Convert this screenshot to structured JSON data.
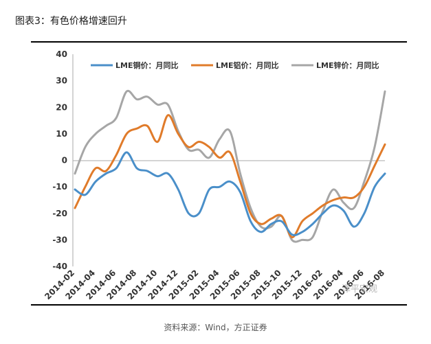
{
  "figure": {
    "title": "图表3：有色价格增速回升",
    "source": "资料来源：Wind，方正证券",
    "watermark": "泽平宏观"
  },
  "chart_data": {
    "type": "line",
    "title": "",
    "xlabel": "",
    "ylabel": "",
    "ylim": [
      -40,
      40
    ],
    "y_ticks": [
      40,
      30,
      20,
      10,
      0,
      -10,
      -20,
      -30,
      -40
    ],
    "x_ticks": [
      "2014-02",
      "2014-04",
      "2014-06",
      "2014-08",
      "2014-10",
      "2014-12",
      "2015-02",
      "2015-04",
      "2015-06",
      "2015-08",
      "2015-10",
      "2015-12",
      "2016-02",
      "2016-04",
      "2016-06",
      "2016-08"
    ],
    "x": [
      "2014-02",
      "2014-03",
      "2014-04",
      "2014-05",
      "2014-06",
      "2014-07",
      "2014-08",
      "2014-09",
      "2014-10",
      "2014-11",
      "2014-12",
      "2015-01",
      "2015-02",
      "2015-03",
      "2015-04",
      "2015-05",
      "2015-06",
      "2015-07",
      "2015-08",
      "2015-09",
      "2015-10",
      "2015-11",
      "2015-12",
      "2016-01",
      "2016-02",
      "2016-03",
      "2016-04",
      "2016-05",
      "2016-06",
      "2016-07",
      "2016-08"
    ],
    "legend_position": "top",
    "series": [
      {
        "name": "LME铜价：月同比",
        "color": "#4a8fc9",
        "values": [
          -11,
          -13,
          -8,
          -5,
          -3,
          3,
          -3,
          -4,
          -6,
          -5,
          -11,
          -20,
          -20,
          -11,
          -10,
          -8,
          -12,
          -23,
          -27,
          -24,
          -23,
          -28,
          -27,
          -24,
          -20,
          -17,
          -19,
          -25,
          -20,
          -10,
          -5
        ]
      },
      {
        "name": "LME铝价：月同比",
        "color": "#e07b2a",
        "values": [
          -18,
          -10,
          -3,
          -4,
          2,
          10,
          12,
          13,
          7,
          17,
          10,
          5,
          7,
          5,
          1,
          3,
          -8,
          -20,
          -24,
          -22,
          -21,
          -29,
          -23,
          -20,
          -17,
          -15,
          -14,
          -14,
          -10,
          -2,
          6
        ]
      },
      {
        "name": "LME锌价：月同比",
        "color": "#a6a6a6",
        "values": [
          -5,
          5,
          10,
          13,
          16,
          26,
          23,
          24,
          21,
          21,
          11,
          4,
          4,
          1,
          8,
          11,
          -5,
          -18,
          -25,
          -25,
          -21,
          -30,
          -30,
          -29,
          -19,
          -11,
          -16,
          -18,
          -8,
          5,
          26
        ]
      }
    ]
  }
}
